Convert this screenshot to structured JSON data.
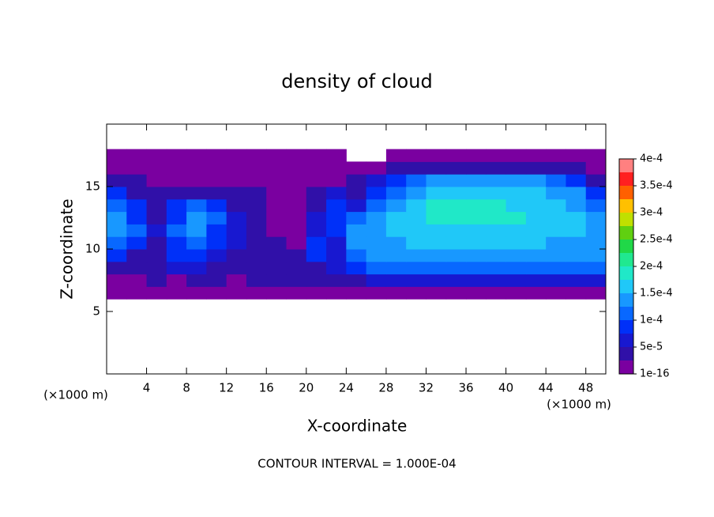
{
  "chart_data": {
    "type": "contour",
    "title": "density of cloud",
    "xlabel": "X-coordinate",
    "ylabel": "Z-coordinate",
    "x_unit_left": "(×1000 m)",
    "x_unit_right": "(×1000 m)",
    "note": "CONTOUR INTERVAL = 1.000E-04",
    "xlim": [
      0,
      50
    ],
    "ylim": [
      0,
      20
    ],
    "xticks": [
      4,
      8,
      12,
      16,
      20,
      24,
      28,
      32,
      36,
      40,
      44,
      48
    ],
    "yticks": [
      5,
      10,
      15
    ],
    "x": [
      1,
      3,
      5,
      7,
      9,
      11,
      13,
      15,
      17,
      19,
      21,
      23,
      25,
      27,
      29,
      31,
      33,
      35,
      37,
      39,
      41,
      43,
      45,
      47,
      49
    ],
    "z": [
      6.5,
      7.5,
      8.5,
      9.5,
      10.5,
      11.5,
      12.5,
      13.5,
      14.5,
      15.5,
      16.5,
      17.5
    ],
    "values": [
      [
        1e-05,
        1e-05,
        1e-05,
        1e-05,
        1e-05,
        1e-05,
        1e-05,
        1e-05,
        1e-05,
        1e-05,
        1e-05,
        1e-05,
        1e-05,
        1e-05,
        1e-05,
        1e-05,
        1e-05,
        1e-05,
        1e-05,
        1e-05,
        1e-05,
        1e-05,
        1e-05,
        1e-05,
        1e-05
      ],
      [
        2e-05,
        2e-05,
        3e-05,
        2e-05,
        3e-05,
        3e-05,
        2e-05,
        3e-05,
        3e-05,
        3e-05,
        3e-05,
        4e-05,
        5e-05,
        6e-05,
        6e-05,
        6e-05,
        6e-05,
        6e-05,
        6e-05,
        6e-05,
        6e-05,
        6e-05,
        6e-05,
        6e-05,
        6e-05
      ],
      [
        5e-05,
        4e-05,
        4e-05,
        6e-05,
        6e-05,
        5e-05,
        5e-05,
        4e-05,
        4e-05,
        4e-05,
        5e-05,
        7e-05,
        0.0001,
        0.00011,
        0.00011,
        0.00011,
        0.00011,
        0.00011,
        0.00011,
        0.00011,
        0.00011,
        0.00011,
        0.00011,
        0.00011,
        0.00012
      ],
      [
        9e-05,
        5e-05,
        4e-05,
        8e-05,
        0.0001,
        7e-05,
        5e-05,
        5e-05,
        4e-05,
        3e-05,
        0.0001,
        6e-05,
        0.00012,
        0.00013,
        0.00014,
        0.00014,
        0.00014,
        0.00014,
        0.00014,
        0.00014,
        0.00014,
        0.00014,
        0.00014,
        0.00014,
        0.00014
      ],
      [
        0.00012,
        0.0001,
        5e-05,
        9e-05,
        0.00012,
        8e-05,
        6e-05,
        5e-05,
        3e-05,
        2e-05,
        8e-05,
        6e-05,
        0.00013,
        0.00014,
        0.00015,
        0.00016,
        0.00016,
        0.00016,
        0.00016,
        0.00016,
        0.00016,
        0.00016,
        0.00015,
        0.00015,
        0.00015
      ],
      [
        0.00013,
        0.00011,
        6e-05,
        0.00011,
        0.00013,
        0.0001,
        7e-05,
        4e-05,
        2e-05,
        1e-05,
        6e-05,
        8e-05,
        0.00013,
        0.00015,
        0.00016,
        0.00017,
        0.00017,
        0.00017,
        0.00017,
        0.00017,
        0.00017,
        0.00017,
        0.00016,
        0.00016,
        0.00015
      ],
      [
        0.00013,
        0.0001,
        5e-05,
        0.0001,
        0.00013,
        0.00011,
        6e-05,
        3e-05,
        1e-05,
        1e-05,
        6e-05,
        0.0001,
        0.00011,
        0.00014,
        0.00016,
        0.00017,
        0.00018,
        0.00018,
        0.00018,
        0.00018,
        0.00018,
        0.00017,
        0.00016,
        0.00016,
        0.00014
      ],
      [
        0.00012,
        9e-05,
        4e-05,
        9e-05,
        0.00012,
        9e-05,
        4e-05,
        3e-05,
        1e-05,
        1e-05,
        5e-05,
        9e-05,
        7e-05,
        0.00012,
        0.00015,
        0.00017,
        0.00018,
        0.00018,
        0.00018,
        0.00018,
        0.00017,
        0.00017,
        0.00016,
        0.00015,
        0.00012
      ],
      [
        8e-05,
        5e-05,
        3e-05,
        4e-05,
        4e-05,
        3e-05,
        3e-05,
        3e-05,
        1e-05,
        1e-05,
        4e-05,
        6e-05,
        4e-05,
        8e-05,
        0.00012,
        0.00015,
        0.00016,
        0.00017,
        0.00017,
        0.00017,
        0.00016,
        0.00016,
        0.00015,
        0.00013,
        8e-05
      ],
      [
        3e-05,
        3e-05,
        2e-05,
        2e-05,
        2e-05,
        2e-05,
        2e-05,
        2e-05,
        1e-05,
        1e-05,
        2e-05,
        2e-05,
        3e-05,
        6e-05,
        9e-05,
        0.00011,
        0.00013,
        0.00013,
        0.00013,
        0.00013,
        0.00013,
        0.00013,
        0.00011,
        8e-05,
        4e-05
      ],
      [
        1e-05,
        1e-05,
        1e-05,
        1e-05,
        1e-05,
        1e-05,
        1e-05,
        1e-05,
        1e-05,
        1e-05,
        1e-05,
        1e-05,
        1e-05,
        2e-05,
        3e-05,
        4e-05,
        4e-05,
        4e-05,
        4e-05,
        4e-05,
        4e-05,
        4e-05,
        4e-05,
        3e-05,
        2e-05
      ],
      [
        1e-05,
        1e-05,
        1e-05,
        1e-05,
        1e-05,
        1e-05,
        1e-05,
        1e-05,
        1e-05,
        1e-05,
        1e-05,
        1e-05,
        null,
        null,
        1e-05,
        1e-05,
        1e-05,
        1e-05,
        1e-05,
        1e-05,
        1e-05,
        1e-05,
        1e-05,
        1e-05,
        1e-05
      ]
    ],
    "colorbar": {
      "lim": [
        1e-16,
        0.0004
      ],
      "ticks": [
        1e-16,
        {
          "value": 5e-05,
          "label": "5e-5"
        },
        {
          "value": 0.0001,
          "label": "1e-4"
        },
        {
          "value": 0.00015,
          "label": "1.5e-4"
        },
        {
          "value": 0.0002,
          "label": "2e-4"
        },
        {
          "value": 0.00025,
          "label": "2.5e-4"
        },
        {
          "value": 0.0003,
          "label": "3e-4"
        },
        {
          "value": 0.00035,
          "label": "3.5e-4"
        },
        {
          "value": 0.0004,
          "label": "4e-4"
        }
      ],
      "colors": [
        "#7a00a0",
        "#3010a8",
        "#1818d0",
        "#0030f8",
        "#0868ff",
        "#1898ff",
        "#20c8f8",
        "#20e8c8",
        "#20e890",
        "#20d848",
        "#60d010",
        "#c0e000",
        "#ffc000",
        "#ff6000",
        "#ff2020",
        "#ff8080"
      ]
    }
  }
}
